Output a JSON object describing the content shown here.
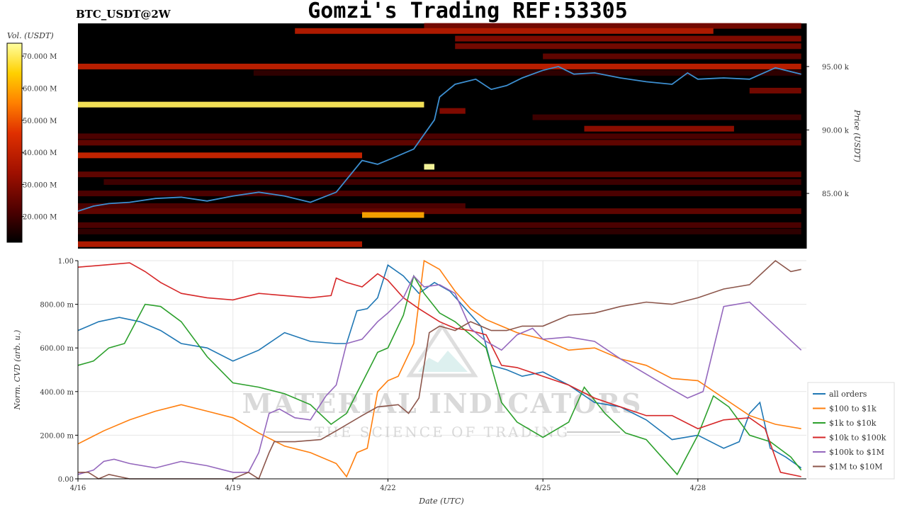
{
  "header": {
    "pair": "BTC_USDT@2W",
    "title": "Gomzi's Trading REF:53305"
  },
  "colorbar": {
    "title": "Vol. (USDT)",
    "ticks": [
      "20.000 M",
      "30.000 M",
      "40.000 M",
      "50.000 M",
      "60.000 M",
      "70.000 M"
    ],
    "tick_values": [
      20,
      30,
      40,
      50,
      60,
      70
    ],
    "range": [
      12,
      74
    ],
    "colors": [
      "#000000",
      "#4a0000",
      "#a01000",
      "#e03000",
      "#ff8000",
      "#ffd000",
      "#ffffa0"
    ]
  },
  "watermark": {
    "brand": "MATERIAL INDICATORS",
    "tagline": "THE SCIENCE OF TRADING"
  },
  "chart_data": [
    {
      "type": "heatmap",
      "name_panel": "order-book-heatmap",
      "ylabel": "Price (USDT)",
      "yticks": [
        "85.00 k",
        "90.00 k",
        "95.00 k"
      ],
      "ytick_values": [
        85000,
        90000,
        95000
      ],
      "ylim": [
        80650,
        98400
      ],
      "xlim_days": [
        0,
        14.1
      ],
      "price_line_color": "#3d8fd1",
      "price_series": {
        "t": [
          0,
          0.3,
          0.6,
          1.0,
          1.5,
          2.0,
          2.5,
          3.0,
          3.5,
          4.0,
          4.5,
          5.0,
          5.5,
          5.8,
          6.1,
          6.5,
          6.9,
          7.0,
          7.3,
          7.7,
          8.0,
          8.3,
          8.6,
          9.0,
          9.3,
          9.6,
          10.0,
          10.5,
          11.0,
          11.5,
          11.8,
          12.0,
          12.5,
          13.0,
          13.5,
          14.0
        ],
        "price": [
          83600,
          84000,
          84200,
          84300,
          84600,
          84700,
          84400,
          84800,
          85100,
          84800,
          84300,
          85100,
          87600,
          87300,
          87800,
          88500,
          90800,
          92600,
          93600,
          94000,
          93200,
          93500,
          94100,
          94700,
          95000,
          94400,
          94500,
          94100,
          93800,
          93600,
          94500,
          94000,
          94100,
          94000,
          94900,
          94400
        ]
      },
      "bands": [
        {
          "price": 98200,
          "t0": 6.7,
          "t1": 14.0,
          "level": 28
        },
        {
          "price": 97800,
          "t0": 4.2,
          "t1": 12.3,
          "level": 38
        },
        {
          "price": 97200,
          "t0": 7.3,
          "t1": 14.0,
          "level": 30
        },
        {
          "price": 96600,
          "t0": 7.3,
          "t1": 14.0,
          "level": 28
        },
        {
          "price": 95800,
          "t0": 9.0,
          "t1": 14.0,
          "level": 25
        },
        {
          "price": 95000,
          "t0": 0.0,
          "t1": 14.0,
          "level": 40
        },
        {
          "price": 94500,
          "t0": 3.4,
          "t1": 14.0,
          "level": 18
        },
        {
          "price": 93100,
          "t0": 13.0,
          "t1": 14.0,
          "level": 28
        },
        {
          "price": 92000,
          "t0": 0.0,
          "t1": 6.7,
          "level": 70
        },
        {
          "price": 91500,
          "t0": 7.0,
          "t1": 7.5,
          "level": 30
        },
        {
          "price": 91000,
          "t0": 8.8,
          "t1": 14.0,
          "level": 20
        },
        {
          "price": 90100,
          "t0": 9.8,
          "t1": 12.7,
          "level": 32
        },
        {
          "price": 89500,
          "t0": 0.0,
          "t1": 14.0,
          "level": 22
        },
        {
          "price": 89000,
          "t0": 0.0,
          "t1": 14.0,
          "level": 25
        },
        {
          "price": 88000,
          "t0": 0.0,
          "t1": 5.5,
          "level": 42
        },
        {
          "price": 87100,
          "t0": 6.7,
          "t1": 6.9,
          "level": 74
        },
        {
          "price": 86500,
          "t0": 0.0,
          "t1": 14.0,
          "level": 25
        },
        {
          "price": 85900,
          "t0": 0.5,
          "t1": 14.0,
          "level": 20
        },
        {
          "price": 85000,
          "t0": 0.0,
          "t1": 14.0,
          "level": 22
        },
        {
          "price": 84000,
          "t0": 0.0,
          "t1": 7.5,
          "level": 22
        },
        {
          "price": 83600,
          "t0": 0.0,
          "t1": 14.0,
          "level": 25
        },
        {
          "price": 83300,
          "t0": 5.5,
          "t1": 6.7,
          "level": 60
        },
        {
          "price": 82500,
          "t0": 0.0,
          "t1": 14.0,
          "level": 22
        },
        {
          "price": 82000,
          "t0": 0.0,
          "t1": 14.0,
          "level": 18
        },
        {
          "price": 81000,
          "t0": 0.0,
          "t1": 5.5,
          "level": 38
        }
      ]
    },
    {
      "type": "line",
      "name_panel": "normalized-cvd",
      "xlabel": "Date (UTC)",
      "ylabel": "Norm. CVD (arb. u.)",
      "x_ticks": [
        "4/16",
        "4/19",
        "4/22",
        "4/25",
        "4/28"
      ],
      "x_tick_values": [
        0,
        3,
        6,
        9,
        12
      ],
      "xlim": [
        0,
        14.1
      ],
      "y_ticks": [
        "0.00",
        "200.00 m",
        "400.00 m",
        "600.00 m",
        "800.00 m",
        "1.00"
      ],
      "y_tick_values": [
        0,
        0.2,
        0.4,
        0.6,
        0.8,
        1.0
      ],
      "ylim": [
        0,
        1.0
      ],
      "grid": true,
      "legend_position": "bottom-right",
      "series": [
        {
          "name": "all orders",
          "color": "#1f77b4",
          "x": [
            0,
            0.4,
            0.8,
            1.2,
            1.6,
            2.0,
            2.5,
            3.0,
            3.5,
            4.0,
            4.5,
            5.0,
            5.2,
            5.4,
            5.6,
            5.8,
            6.0,
            6.3,
            6.6,
            6.9,
            7.2,
            7.5,
            7.8,
            8.0,
            8.3,
            8.6,
            9.0,
            9.5,
            10.0,
            10.5,
            11.0,
            11.5,
            12.0,
            12.5,
            12.8,
            13.0,
            13.2,
            13.4,
            13.7,
            14.0
          ],
          "y": [
            0.68,
            0.72,
            0.74,
            0.72,
            0.68,
            0.62,
            0.6,
            0.54,
            0.59,
            0.67,
            0.63,
            0.62,
            0.62,
            0.77,
            0.78,
            0.83,
            0.98,
            0.93,
            0.85,
            0.9,
            0.86,
            0.78,
            0.7,
            0.52,
            0.5,
            0.47,
            0.49,
            0.43,
            0.35,
            0.33,
            0.27,
            0.18,
            0.2,
            0.14,
            0.17,
            0.3,
            0.35,
            0.14,
            0.1,
            0.05
          ]
        },
        {
          "name": "$100 to $1k",
          "color": "#ff7f0e",
          "x": [
            0,
            0.5,
            1.0,
            1.5,
            2.0,
            2.5,
            3.0,
            3.5,
            4.0,
            4.5,
            5.0,
            5.2,
            5.4,
            5.6,
            5.8,
            6.0,
            6.2,
            6.5,
            6.7,
            7.0,
            7.3,
            7.6,
            7.9,
            8.2,
            8.5,
            9.0,
            9.5,
            10.0,
            10.5,
            11.0,
            11.5,
            12.0,
            12.5,
            13.0,
            13.5,
            14.0
          ],
          "y": [
            0.16,
            0.22,
            0.27,
            0.31,
            0.34,
            0.31,
            0.28,
            0.21,
            0.15,
            0.12,
            0.07,
            0.01,
            0.12,
            0.14,
            0.4,
            0.45,
            0.47,
            0.62,
            1.0,
            0.96,
            0.86,
            0.78,
            0.73,
            0.7,
            0.67,
            0.64,
            0.59,
            0.6,
            0.55,
            0.52,
            0.46,
            0.45,
            0.37,
            0.29,
            0.25,
            0.23
          ]
        },
        {
          "name": "$1k to $10k",
          "color": "#2ca02c",
          "x": [
            0,
            0.3,
            0.6,
            0.9,
            1.3,
            1.6,
            2.0,
            2.5,
            3.0,
            3.5,
            4.0,
            4.5,
            4.9,
            5.2,
            5.5,
            5.8,
            6.0,
            6.3,
            6.5,
            6.7,
            7.0,
            7.3,
            7.6,
            7.9,
            8.2,
            8.5,
            9.0,
            9.5,
            9.8,
            10.2,
            10.6,
            11.0,
            11.3,
            11.6,
            12.0,
            12.3,
            12.6,
            13.0,
            13.4,
            13.8,
            14.0
          ],
          "y": [
            0.52,
            0.54,
            0.6,
            0.62,
            0.8,
            0.79,
            0.72,
            0.56,
            0.44,
            0.42,
            0.39,
            0.34,
            0.25,
            0.3,
            0.44,
            0.58,
            0.6,
            0.75,
            0.93,
            0.85,
            0.76,
            0.72,
            0.66,
            0.6,
            0.35,
            0.26,
            0.19,
            0.26,
            0.42,
            0.3,
            0.21,
            0.18,
            0.1,
            0.02,
            0.2,
            0.38,
            0.33,
            0.2,
            0.17,
            0.1,
            0.04
          ]
        },
        {
          "name": "$10k to $100k",
          "color": "#d62728",
          "x": [
            0,
            0.5,
            1.0,
            1.3,
            1.6,
            2.0,
            2.5,
            3.0,
            3.5,
            4.0,
            4.5,
            4.9,
            5.0,
            5.2,
            5.5,
            5.8,
            6.0,
            6.3,
            6.6,
            7.0,
            7.3,
            7.6,
            7.9,
            8.2,
            8.5,
            9.0,
            9.5,
            10.0,
            10.5,
            11.0,
            11.5,
            12.0,
            12.5,
            13.0,
            13.3,
            13.6,
            14.0
          ],
          "y": [
            0.97,
            0.98,
            0.99,
            0.95,
            0.9,
            0.85,
            0.83,
            0.82,
            0.85,
            0.84,
            0.83,
            0.84,
            0.92,
            0.9,
            0.88,
            0.94,
            0.91,
            0.83,
            0.78,
            0.72,
            0.69,
            0.68,
            0.66,
            0.52,
            0.51,
            0.47,
            0.43,
            0.37,
            0.33,
            0.29,
            0.29,
            0.23,
            0.27,
            0.28,
            0.23,
            0.03,
            0.01
          ]
        },
        {
          "name": "$100k to $1M",
          "color": "#9467bd",
          "x": [
            0,
            0.3,
            0.5,
            0.7,
            1.0,
            1.5,
            2.0,
            2.5,
            3.0,
            3.3,
            3.5,
            3.7,
            3.9,
            4.2,
            4.5,
            4.8,
            5.0,
            5.2,
            5.5,
            5.8,
            6.0,
            6.3,
            6.5,
            6.7,
            7.0,
            7.3,
            7.6,
            7.9,
            8.2,
            8.5,
            8.8,
            9.0,
            9.5,
            10.0,
            10.5,
            11.0,
            11.5,
            11.8,
            12.1,
            12.5,
            13.0,
            13.5,
            14.0
          ],
          "y": [
            0.02,
            0.04,
            0.08,
            0.09,
            0.07,
            0.05,
            0.08,
            0.06,
            0.03,
            0.03,
            0.12,
            0.3,
            0.32,
            0.28,
            0.27,
            0.38,
            0.43,
            0.62,
            0.64,
            0.72,
            0.76,
            0.83,
            0.93,
            0.88,
            0.89,
            0.85,
            0.69,
            0.63,
            0.59,
            0.66,
            0.69,
            0.64,
            0.65,
            0.63,
            0.55,
            0.48,
            0.41,
            0.37,
            0.4,
            0.79,
            0.81,
            0.7,
            0.59
          ]
        },
        {
          "name": "$1M to $10M",
          "color": "#8c564b",
          "x": [
            0,
            0.2,
            0.4,
            0.6,
            1.0,
            2.0,
            3.0,
            3.3,
            3.5,
            3.7,
            3.8,
            4.2,
            4.7,
            5.0,
            5.5,
            5.8,
            6.2,
            6.4,
            6.6,
            6.8,
            7.0,
            7.3,
            7.6,
            8.0,
            8.3,
            8.6,
            9.0,
            9.5,
            10.0,
            10.5,
            11.0,
            11.5,
            12.0,
            12.5,
            13.0,
            13.5,
            13.8,
            14.0
          ],
          "y": [
            0.03,
            0.03,
            0.0,
            0.02,
            0.0,
            0.0,
            0.0,
            0.03,
            0.0,
            0.12,
            0.17,
            0.17,
            0.18,
            0.22,
            0.29,
            0.33,
            0.34,
            0.3,
            0.37,
            0.67,
            0.7,
            0.68,
            0.72,
            0.68,
            0.68,
            0.7,
            0.7,
            0.75,
            0.76,
            0.79,
            0.81,
            0.8,
            0.83,
            0.87,
            0.89,
            1.0,
            0.95,
            0.96
          ]
        }
      ]
    }
  ]
}
